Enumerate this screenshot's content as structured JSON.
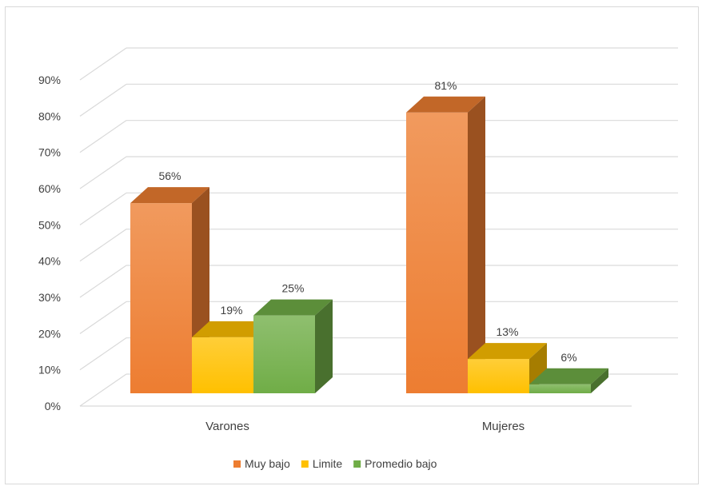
{
  "chart_data": {
    "type": "bar",
    "title": "",
    "xlabel": "",
    "ylabel": "",
    "categories": [
      "Varones",
      "Mujeres"
    ],
    "series": [
      {
        "name": "Muy bajo",
        "values": [
          56,
          81
        ],
        "labels": [
          "56%",
          "81%"
        ],
        "color": "#ed7d31"
      },
      {
        "name": "Limite",
        "values": [
          19,
          13
        ],
        "labels": [
          "19%",
          "13%"
        ],
        "color": "#ffc000"
      },
      {
        "name": "Promedio bajo",
        "values": [
          25,
          6
        ],
        "labels": [
          "25%",
          "6%"
        ],
        "color": "#70ad47"
      }
    ],
    "ylim": [
      0,
      90
    ],
    "yticks": [
      0,
      10,
      20,
      30,
      40,
      50,
      60,
      70,
      80,
      90
    ],
    "ytick_labels": [
      "0%",
      "10%",
      "20%",
      "30%",
      "40%",
      "50%",
      "60%",
      "70%",
      "80%",
      "90%"
    ],
    "grid": true,
    "style": "3d-clustered-column",
    "legend_position": "bottom"
  }
}
